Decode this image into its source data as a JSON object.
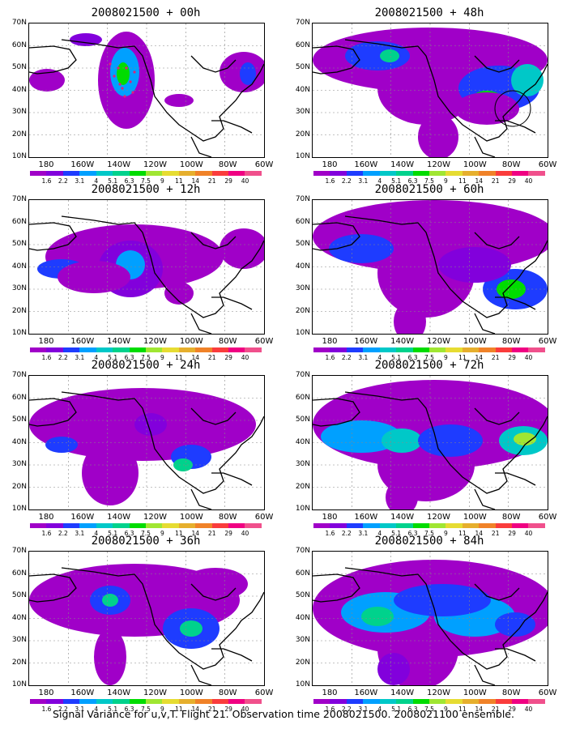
{
  "panels": [
    {
      "title": "2008021500 + 00h"
    },
    {
      "title": "2008021500 + 48h"
    },
    {
      "title": "2008021500 + 12h"
    },
    {
      "title": "2008021500 + 60h"
    },
    {
      "title": "2008021500 + 24h"
    },
    {
      "title": "2008021500 + 72h"
    },
    {
      "title": "2008021500 + 36h"
    },
    {
      "title": "2008021500 + 84h"
    }
  ],
  "lat_labels": [
    "70N",
    "60N",
    "50N",
    "40N",
    "30N",
    "20N",
    "10N"
  ],
  "lon_labels": [
    "180",
    "160W",
    "140W",
    "120W",
    "100W",
    "80W",
    "60W"
  ],
  "colorbar_labels": [
    "1.6",
    "2.2",
    "3.1",
    "4",
    "5.1",
    "6.3",
    "7.5",
    "9",
    "11",
    "14",
    "21",
    "29",
    "40"
  ],
  "colorbar_colors": [
    "#a000c8",
    "#8200dc",
    "#1e3cff",
    "#00a0ff",
    "#00c8c8",
    "#00d28c",
    "#00dc00",
    "#a0e632",
    "#e6dc32",
    "#e6af2d",
    "#f08228",
    "#fa3c3c",
    "#f00082"
  ],
  "caption": "Signal Variance for u,v,T. Flight 21. Observation time 2008021500. 2008021100 ensemble."
}
